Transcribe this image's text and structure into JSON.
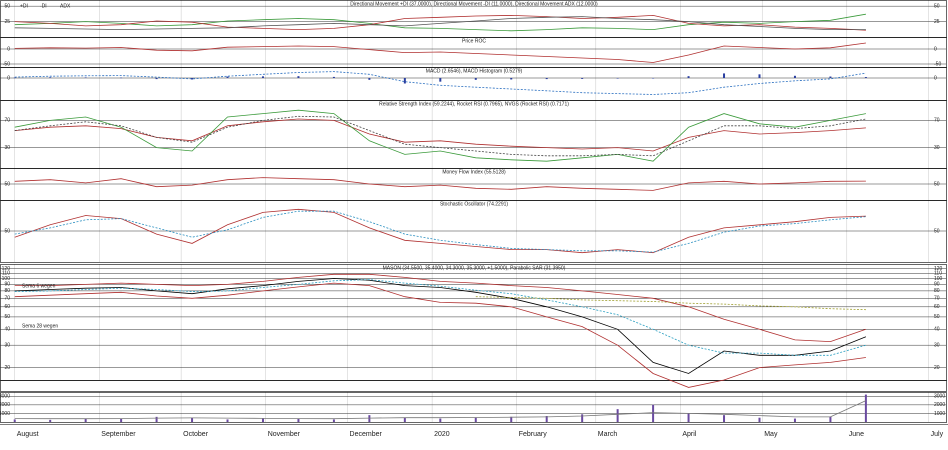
{
  "chart_data": {
    "type": "panels",
    "x": [
      0,
      13,
      26,
      39,
      52,
      65,
      78,
      91,
      104,
      117,
      130,
      143,
      156,
      169,
      182,
      195,
      208,
      221,
      234,
      247,
      260,
      273,
      286,
      299,
      312
    ],
    "xlim": [
      -1,
      341
    ],
    "xticks": [
      {
        "value": 0,
        "label": "August"
      },
      {
        "value": 31,
        "label": "September"
      },
      {
        "value": 61,
        "label": "October"
      },
      {
        "value": 92,
        "label": "November"
      },
      {
        "value": 122,
        "label": "December"
      },
      {
        "value": 153,
        "label": "2020"
      },
      {
        "value": 184,
        "label": "February"
      },
      {
        "value": 213,
        "label": "March"
      },
      {
        "value": 244,
        "label": "April"
      },
      {
        "value": 274,
        "label": "May"
      },
      {
        "value": 305,
        "label": "June"
      },
      {
        "value": 335,
        "label": "July"
      }
    ],
    "grid": true,
    "panels": [
      {
        "type": "line",
        "title": "Directional Movement +DI (37.0000), Directional Movement -DI (11.0000), Directional Movement ADX (12.0000)",
        "ylim": [
          0,
          60
        ],
        "yticks": [
          25,
          50
        ],
        "series": [
          {
            "name": "+DI",
            "color": "#3a9a3a",
            "values": [
              20,
              22,
              25,
              22,
              18,
              20,
              26,
              28,
              30,
              28,
              22,
              15,
              14,
              12,
              10,
              12,
              15,
              14,
              12,
              20,
              24,
              22,
              25,
              27,
              37
            ]
          },
          {
            "name": "-DI",
            "color": "#b03030",
            "values": [
              25,
              22,
              18,
              20,
              26,
              24,
              16,
              14,
              12,
              14,
              20,
              30,
              32,
              34,
              35,
              33,
              30,
              32,
              35,
              22,
              18,
              20,
              16,
              14,
              11
            ]
          },
          {
            "name": "ADX",
            "color": "#555555",
            "values": [
              15,
              14,
              13,
              12,
              13,
              14,
              15,
              18,
              20,
              22,
              20,
              18,
              22,
              26,
              30,
              32,
              33,
              30,
              28,
              25,
              20,
              17,
              14,
              12,
              12
            ]
          }
        ]
      },
      {
        "type": "line",
        "title": "Price ROC",
        "ylim": [
          -60,
          40
        ],
        "yticks": [
          -50,
          0
        ],
        "series": [
          {
            "color": "#b03030",
            "values": [
              2,
              4,
              3,
              5,
              -4,
              -6,
              6,
              8,
              10,
              8,
              -2,
              -12,
              -10,
              -15,
              -20,
              -25,
              -30,
              -35,
              -45,
              -20,
              10,
              5,
              0,
              4,
              20
            ]
          }
        ]
      },
      {
        "type": "line",
        "title": "MACD (2.6546), MACD Histogram (0.5279)",
        "ylim": [
          -12,
          6
        ],
        "yticks": [
          0
        ],
        "series": [
          {
            "color": "#2a6fc0",
            "style": "dashed",
            "values": [
              0.5,
              1,
              1.2,
              1.3,
              0.5,
              -0.5,
              1,
              2,
              3,
              3.5,
              2,
              -2,
              -4,
              -5,
              -6,
              -7,
              -8,
              -8.5,
              -9,
              -8,
              -5,
              -3,
              -1.5,
              -0.5,
              2.65
            ]
          },
          {
            "color": "#2a3fa0",
            "style": "bars",
            "values": [
              0.2,
              0.4,
              0.3,
              0.2,
              -0.6,
              -0.8,
              0.8,
              0.9,
              1,
              0.6,
              -1,
              -3,
              -2,
              -1,
              -0.8,
              -0.6,
              -0.5,
              -0.3,
              -0.2,
              1,
              2.5,
              2,
              1.2,
              0.8,
              0.53
            ]
          }
        ]
      },
      {
        "type": "line",
        "title": "Relative Strength Index (59.2244), Rocket RSI (0.7965), NVGS (Rocket RSI) (0.7171)",
        "ylim": [
          0,
          100
        ],
        "yticks": [
          30,
          70
        ],
        "series": [
          {
            "color": "#b03030",
            "values": [
              55,
              60,
              62,
              58,
              45,
              40,
              62,
              68,
              72,
              70,
              50,
              38,
              40,
              35,
              32,
              30,
              28,
              30,
              25,
              45,
              55,
              50,
              52,
              55,
              59
            ]
          },
          {
            "color": "#3a9a3a",
            "values": [
              60,
              70,
              75,
              60,
              30,
              25,
              75,
              80,
              85,
              80,
              40,
              20,
              25,
              15,
              12,
              10,
              15,
              20,
              10,
              60,
              80,
              65,
              60,
              70,
              80
            ]
          },
          {
            "color": "#444444",
            "style": "dashed",
            "values": [
              55,
              62,
              68,
              62,
              45,
              38,
              60,
              70,
              76,
              75,
              55,
              35,
              30,
              25,
              20,
              18,
              18,
              20,
              18,
              40,
              62,
              62,
              58,
              62,
              72
            ]
          }
        ]
      },
      {
        "type": "line",
        "title": "Money Flow Index (55.5128)",
        "ylim": [
          20,
          80
        ],
        "yticks": [
          50
        ],
        "series": [
          {
            "color": "#b03030",
            "values": [
              55,
              58,
              52,
              60,
              45,
              48,
              58,
              62,
              60,
              58,
              50,
              45,
              48,
              42,
              40,
              45,
              42,
              40,
              38,
              52,
              55,
              50,
              52,
              55,
              55.5
            ]
          }
        ]
      },
      {
        "type": "line",
        "title": "Stochastic Oscillator (74.2291)",
        "ylim": [
          0,
          100
        ],
        "yticks": [
          50
        ],
        "series": [
          {
            "color": "#b03030",
            "values": [
              40,
              60,
              75,
              70,
              45,
              30,
              60,
              80,
              85,
              80,
              55,
              35,
              30,
              25,
              20,
              20,
              15,
              20,
              15,
              40,
              55,
              60,
              65,
              72,
              74
            ]
          },
          {
            "color": "#2a8fc0",
            "style": "dashed",
            "values": [
              45,
              55,
              68,
              70,
              55,
              40,
              52,
              72,
              82,
              82,
              65,
              45,
              35,
              28,
              22,
              20,
              18,
              18,
              16,
              30,
              48,
              58,
              62,
              68,
              73
            ]
          }
        ]
      },
      {
        "type": "line",
        "title": "MASON (34.5500, 35.4000, 34.3000, 35.3000, +1.5000), Parabolic SAR (31.3950)",
        "log": true,
        "ylim": [
          16,
          130
        ],
        "yticks": [
          20,
          30,
          40,
          50,
          60,
          70,
          80,
          90,
          100,
          110,
          120
        ],
        "series": [
          {
            "color": "#000000",
            "values": [
              80,
              82,
              84,
              85,
              80,
              76,
              83,
              88,
              95,
              100,
              97,
              88,
              85,
              78,
              70,
              60,
              50,
              40,
              22,
              18,
              27,
              25,
              25,
              27,
              35
            ]
          },
          {
            "color": "#b03030",
            "values": [
              88,
              88,
              90,
              92,
              90,
              88,
              90,
              95,
              102,
              108,
              108,
              102,
              95,
              92,
              88,
              85,
              80,
              75,
              70,
              60,
              48,
              40,
              33,
              32,
              40
            ]
          },
          {
            "color": "#b03030",
            "values": [
              72,
              74,
              76,
              78,
              73,
              70,
              74,
              80,
              86,
              92,
              88,
              72,
              65,
              64,
              60,
              50,
              42,
              30,
              18,
              14,
              16,
              20,
              21,
              22,
              24
            ]
          },
          {
            "name": "Sema 6 wegen",
            "color": "#2a9fc0",
            "style": "dashed",
            "values": [
              79,
              80,
              82,
              84,
              82,
              79,
              80,
              85,
              90,
              96,
              98,
              92,
              87,
              81,
              76,
              68,
              60,
              52,
              40,
              30,
              26,
              26,
              25,
              25,
              30
            ]
          },
          {
            "name": "Sema 28 wegen",
            "color": "#a0a030",
            "style": "dashed",
            "values": [
              null,
              null,
              null,
              null,
              null,
              null,
              null,
              null,
              null,
              null,
              null,
              null,
              null,
              72,
              71,
              70,
              68,
              67,
              66,
              64,
              63,
              61,
              60,
              58,
              57
            ]
          }
        ]
      },
      {
        "type": "line",
        "title": "",
        "ylim": [
          0,
          3500
        ],
        "yticks": [
          1000,
          2000,
          3000
        ],
        "series": [
          {
            "color": "#6a4aa0",
            "style": "bars",
            "values": [
              300,
              250,
              400,
              350,
              600,
              500,
              300,
              400,
              350,
              300,
              800,
              500,
              400,
              500,
              600,
              700,
              900,
              1500,
              2000,
              1000,
              800,
              500,
              400,
              600,
              3200
            ]
          },
          {
            "color": "#777777",
            "values": [
              400,
              380,
              380,
              400,
              450,
              480,
              450,
              420,
              400,
              380,
              450,
              500,
              500,
              520,
              560,
              600,
              700,
              900,
              1100,
              1000,
              900,
              750,
              600,
              600,
              2500
            ]
          }
        ]
      }
    ]
  }
}
